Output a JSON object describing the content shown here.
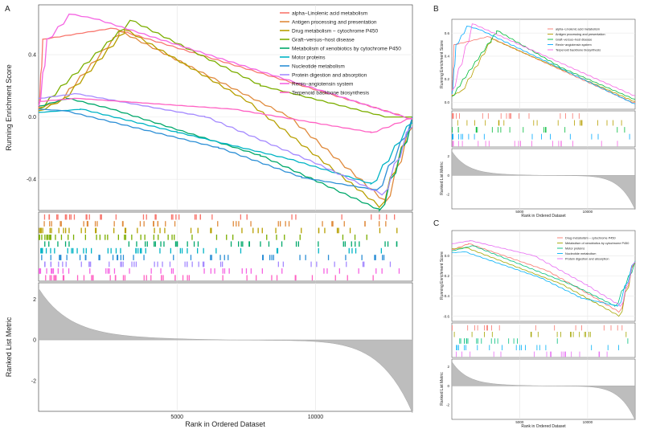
{
  "chart_data": [
    {
      "panel_label": "A",
      "type": "line",
      "ylabel_top": "Running Enrichment Score",
      "ylabel_bottom": "Ranked List Metric",
      "xlabel": "Rank in Ordered Dataset",
      "xlim": [
        0,
        13500
      ],
      "x_ticks": [
        5000,
        10000
      ],
      "es_ylim": [
        -0.6,
        0.72
      ],
      "es_ticks": [
        0.4,
        0.0,
        -0.4
      ],
      "metric_ylim": [
        -3.5,
        2.8
      ],
      "metric_ticks": [
        2,
        0,
        -2
      ],
      "grid": true,
      "legend_position": "top-right",
      "series": [
        {
          "name": "alpha−Linolenic acid metabolism",
          "color": "#F8766D",
          "points": [
            [
              0,
              0.05
            ],
            [
              150,
              0.5
            ],
            [
              2600,
              0.57
            ],
            [
              13200,
              0.0
            ],
            [
              13500,
              0.0
            ]
          ]
        },
        {
          "name": "Antigen processing and presentation",
          "color": "#E08A3C",
          "points": [
            [
              0,
              0.06
            ],
            [
              700,
              0.1
            ],
            [
              2900,
              0.55
            ],
            [
              9000,
              0.0
            ],
            [
              12500,
              -0.55
            ],
            [
              13500,
              0.0
            ]
          ]
        },
        {
          "name": "Drug metabolism − cytochrome P450",
          "color": "#B79F00",
          "points": [
            [
              0,
              0.04
            ],
            [
              900,
              0.12
            ],
            [
              3100,
              0.56
            ],
            [
              7500,
              0.1
            ],
            [
              12300,
              -0.58
            ],
            [
              13500,
              0.0
            ]
          ]
        },
        {
          "name": "Graft−versus−host disease",
          "color": "#7CAE00",
          "points": [
            [
              0,
              0.05
            ],
            [
              800,
              0.2
            ],
            [
              3300,
              0.62
            ],
            [
              8000,
              0.2
            ],
            [
              12500,
              0.0
            ],
            [
              13500,
              0.0
            ]
          ]
        },
        {
          "name": "Metabolism of xenobiotics by cytochrome P450",
          "color": "#00A86B",
          "points": [
            [
              0,
              0.07
            ],
            [
              1000,
              0.12
            ],
            [
              2600,
              0.05
            ],
            [
              8000,
              -0.25
            ],
            [
              12300,
              -0.6
            ],
            [
              13500,
              0.0
            ]
          ]
        },
        {
          "name": "Motor proteins",
          "color": "#00B4C5",
          "points": [
            [
              0,
              0.03
            ],
            [
              1500,
              0.05
            ],
            [
              5000,
              -0.1
            ],
            [
              9000,
              -0.27
            ],
            [
              12000,
              -0.43
            ],
            [
              13500,
              0.0
            ]
          ]
        },
        {
          "name": "Nucleotide metabolism",
          "color": "#2C8FD6",
          "points": [
            [
              0,
              0.05
            ],
            [
              900,
              0.04
            ],
            [
              3000,
              -0.05
            ],
            [
              6500,
              -0.2
            ],
            [
              9500,
              -0.39
            ],
            [
              12200,
              -0.47
            ],
            [
              13500,
              0.0
            ]
          ]
        },
        {
          "name": "Protein digestion and absorption",
          "color": "#A58AFF",
          "points": [
            [
              0,
              0.12
            ],
            [
              1300,
              0.15
            ],
            [
              6000,
              0.0
            ],
            [
              10000,
              -0.3
            ],
            [
              12400,
              -0.5
            ],
            [
              13500,
              0.0
            ]
          ]
        },
        {
          "name": "Renin−angiotensin system",
          "color": "#F564E3",
          "points": [
            [
              0,
              0.07
            ],
            [
              300,
              0.5
            ],
            [
              1100,
              0.66
            ],
            [
              2000,
              0.63
            ],
            [
              13500,
              -0.02
            ]
          ]
        },
        {
          "name": "Terpenoid backbone biosynthesis",
          "color": "#FF61C3",
          "points": [
            [
              0,
              0.1
            ],
            [
              1300,
              0.12
            ],
            [
              7000,
              0.05
            ],
            [
              12000,
              -0.1
            ],
            [
              13500,
              0.0
            ]
          ]
        }
      ]
    },
    {
      "panel_label": "B",
      "type": "line",
      "ylabel_top": "Running Enrichment Score",
      "ylabel_bottom": "Ranked List Metric",
      "xlabel": "Rank in Ordered Dataset",
      "xlim": [
        0,
        13500
      ],
      "x_ticks": [
        5000,
        10000
      ],
      "es_ylim": [
        -0.06,
        0.72
      ],
      "es_ticks": [
        0.6,
        0.4,
        0.2,
        0.0
      ],
      "metric_ylim": [
        -3.5,
        2.8
      ],
      "metric_ticks": [
        2,
        0,
        -2
      ],
      "grid": true,
      "legend_position": "top-right",
      "series": [
        {
          "name": "alpha−Linolenic acid metabolism",
          "color": "#F8766D",
          "points": [
            [
              0,
              0.05
            ],
            [
              150,
              0.5
            ],
            [
              2600,
              0.57
            ],
            [
              13200,
              0.0
            ],
            [
              13500,
              0.0
            ]
          ]
        },
        {
          "name": "Antigen processing and presentation",
          "color": "#B79F00",
          "points": [
            [
              0,
              0.06
            ],
            [
              700,
              0.1
            ],
            [
              2900,
              0.55
            ],
            [
              13500,
              0.0
            ]
          ]
        },
        {
          "name": "Graft−versus−host disease",
          "color": "#00BA38",
          "points": [
            [
              0,
              0.05
            ],
            [
              800,
              0.2
            ],
            [
              3300,
              0.62
            ],
            [
              8000,
              0.3
            ],
            [
              13500,
              0.02
            ]
          ]
        },
        {
          "name": "Renin−angiotensin system",
          "color": "#00A9FF",
          "points": [
            [
              0,
              0.07
            ],
            [
              300,
              0.5
            ],
            [
              1100,
              0.66
            ],
            [
              2000,
              0.63
            ],
            [
              13500,
              -0.02
            ]
          ]
        },
        {
          "name": "Terpenoid backbone biosynthesis",
          "color": "#F564E3",
          "points": [
            [
              0,
              0.1
            ],
            [
              1500,
              0.68
            ],
            [
              13500,
              0.05
            ]
          ]
        }
      ]
    },
    {
      "panel_label": "C",
      "type": "line",
      "ylabel_top": "Running Enrichment Score",
      "ylabel_bottom": "Ranked List Metric",
      "xlabel": "Rank in Ordered Dataset",
      "xlim": [
        0,
        13500
      ],
      "x_ticks": [
        5000,
        10000
      ],
      "es_ylim": [
        -0.65,
        0.25
      ],
      "es_ticks": [
        0.0,
        -0.2,
        -0.4,
        -0.6
      ],
      "metric_ylim": [
        -3.5,
        2.8
      ],
      "metric_ticks": [
        2,
        0,
        -2
      ],
      "grid": true,
      "legend_position": "top-right",
      "series": [
        {
          "name": "Drug metabolism − cytochrome P450",
          "color": "#F8766D",
          "points": [
            [
              0,
              0.06
            ],
            [
              1200,
              0.12
            ],
            [
              7000,
              -0.15
            ],
            [
              10000,
              -0.38
            ],
            [
              12300,
              -0.56
            ],
            [
              13500,
              0.0
            ]
          ]
        },
        {
          "name": "Metabolism of xenobiotics by cytochrome P450",
          "color": "#A3A500",
          "points": [
            [
              0,
              0.07
            ],
            [
              1000,
              0.08
            ],
            [
              8000,
              -0.28
            ],
            [
              12300,
              -0.6
            ],
            [
              13500,
              0.0
            ]
          ]
        },
        {
          "name": "Motor proteins",
          "color": "#00BF7D",
          "points": [
            [
              0,
              0.05
            ],
            [
              1500,
              0.1
            ],
            [
              9000,
              -0.3
            ],
            [
              12000,
              -0.5
            ],
            [
              13500,
              -0.05
            ]
          ]
        },
        {
          "name": "Nucleotide metabolism",
          "color": "#00B0F6",
          "points": [
            [
              0,
              0.03
            ],
            [
              900,
              0.04
            ],
            [
              6500,
              -0.22
            ],
            [
              9500,
              -0.42
            ],
            [
              12200,
              -0.5
            ],
            [
              13500,
              0.0
            ]
          ]
        },
        {
          "name": "Protein digestion and absorption",
          "color": "#E76BF3",
          "points": [
            [
              0,
              0.12
            ],
            [
              1300,
              0.15
            ],
            [
              6000,
              0.0
            ],
            [
              10000,
              -0.3
            ],
            [
              12400,
              -0.5
            ],
            [
              13500,
              0.0
            ]
          ]
        }
      ]
    }
  ]
}
